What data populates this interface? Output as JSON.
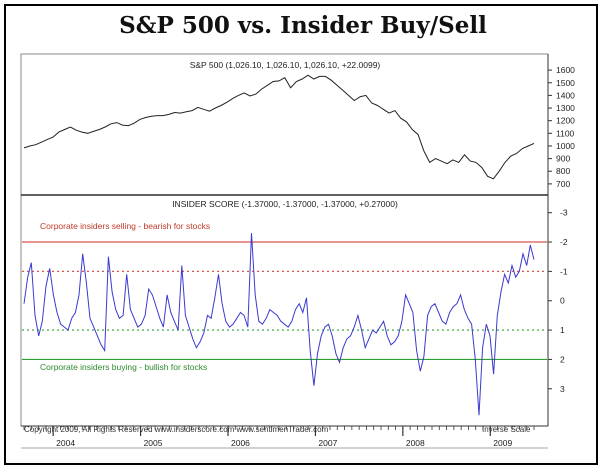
{
  "title": "S&P 500 vs. Insider Buy/Sell",
  "chart_data": [
    {
      "type": "line",
      "label": "S&P 500 (1,026.10, 1,026.10, 1,026.10, +22.0099)",
      "x_start": "2003-09",
      "x_end": "2009-06",
      "yticks": [
        700,
        800,
        900,
        1000,
        1100,
        1200,
        1300,
        1400,
        1500,
        1600
      ],
      "ylim": [
        620,
        1680
      ],
      "values": [
        985,
        1000,
        1010,
        1030,
        1050,
        1070,
        1110,
        1130,
        1150,
        1125,
        1110,
        1100,
        1115,
        1130,
        1150,
        1175,
        1185,
        1165,
        1160,
        1180,
        1210,
        1225,
        1235,
        1240,
        1240,
        1250,
        1265,
        1260,
        1270,
        1280,
        1305,
        1290,
        1275,
        1300,
        1320,
        1345,
        1375,
        1400,
        1420,
        1395,
        1410,
        1450,
        1480,
        1510,
        1515,
        1540,
        1460,
        1510,
        1530,
        1560,
        1530,
        1550,
        1550,
        1520,
        1480,
        1440,
        1400,
        1360,
        1390,
        1400,
        1340,
        1320,
        1290,
        1260,
        1280,
        1220,
        1190,
        1130,
        1090,
        960,
        870,
        900,
        880,
        860,
        890,
        870,
        930,
        880,
        870,
        830,
        760,
        740,
        800,
        870,
        920,
        940,
        980,
        1000,
        1020
      ]
    },
    {
      "type": "line",
      "label": "INSIDER SCORE (-1.37000, -1.37000, -1.37000, +0.27000)",
      "x_start": "2003-09",
      "x_end": "2009-06",
      "y_inverse": true,
      "yticks": [
        -3,
        -2,
        -1,
        0,
        1,
        2,
        3
      ],
      "ylim": [
        -3.5,
        4.2
      ],
      "reference_lines": [
        {
          "y": -2,
          "style": "solid",
          "color": "#d9534f"
        },
        {
          "y": -1,
          "style": "dotted",
          "color": "#d9534f"
        },
        {
          "y": 1,
          "style": "dotted",
          "color": "#2e9e2e"
        },
        {
          "y": 2,
          "style": "solid",
          "color": "#2e9e2e"
        }
      ],
      "values": [
        0.1,
        -0.8,
        -1.3,
        0.5,
        1.2,
        0.7,
        -0.5,
        -1.1,
        -0.2,
        0.4,
        0.8,
        0.9,
        1.0,
        0.6,
        0.4,
        -0.2,
        -1.6,
        -0.6,
        0.6,
        0.9,
        1.2,
        1.5,
        1.7,
        -1.5,
        -0.3,
        0.3,
        0.6,
        0.5,
        -0.9,
        0.3,
        0.6,
        0.9,
        0.8,
        0.5,
        -0.4,
        -0.2,
        0.2,
        0.6,
        0.9,
        -0.2,
        0.4,
        0.7,
        1.0,
        -1.2,
        0.5,
        0.9,
        1.3,
        1.6,
        1.4,
        1.1,
        0.5,
        0.6,
        -0.1,
        -0.9,
        0.1,
        0.7,
        0.9,
        0.8,
        0.6,
        0.4,
        0.5,
        0.9,
        -2.3,
        -0.2,
        0.7,
        0.8,
        0.6,
        0.3,
        0.4,
        0.5,
        0.7,
        0.8,
        0.9,
        0.7,
        0.3,
        0.1,
        0.4,
        -0.1,
        1.7,
        2.9,
        1.8,
        1.2,
        0.9,
        0.8,
        1.2,
        1.8,
        2.1,
        1.6,
        1.3,
        1.2,
        0.9,
        0.5,
        1.0,
        1.6,
        1.3,
        1.0,
        1.1,
        0.9,
        0.7,
        1.2,
        1.5,
        1.4,
        1.2,
        0.7,
        -0.2,
        0.1,
        0.4,
        1.7,
        2.4,
        1.9,
        0.5,
        0.2,
        0.1,
        0.4,
        0.7,
        0.8,
        0.4,
        0.2,
        0.1,
        -0.2,
        0.3,
        0.6,
        0.8,
        2.0,
        3.9,
        1.6,
        0.8,
        1.2,
        2.5,
        0.5,
        -0.3,
        -0.9,
        -0.6,
        -1.2,
        -0.8,
        -1.0,
        -1.6,
        -1.2,
        -1.9,
        -1.4
      ]
    }
  ],
  "annotations": {
    "selling": "Corporate insiders selling - bearish for stocks",
    "buying": "Corporate insiders buying - bullish for stocks",
    "copyright": "Copyright 2009, All Rights Reserved  www.insiderscore.com  www.sentimenTrader.com",
    "scale_note": "Inverse Scale"
  },
  "x_axis_labels": [
    "2004",
    "2005",
    "2006",
    "2007",
    "2008",
    "2009"
  ]
}
